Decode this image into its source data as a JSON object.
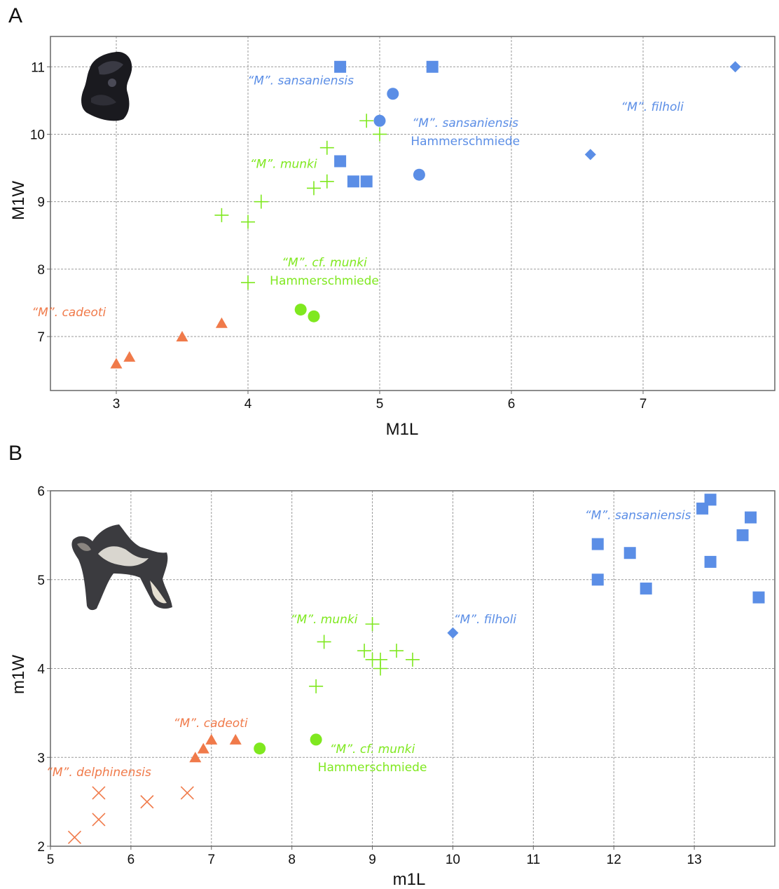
{
  "colors": {
    "blue": "#5b8ee6",
    "green": "#7fe81f",
    "orange": "#f07a4a",
    "grid": "#9a9a9a",
    "frame": "#666666"
  },
  "chart_data": [
    {
      "panel": "A",
      "type": "scatter",
      "xlabel": "M1L",
      "ylabel": "M1W",
      "xlim": [
        2.5,
        8.0
      ],
      "ylim": [
        6.2,
        11.45
      ],
      "xticks": [
        3,
        4,
        5,
        6,
        7
      ],
      "yticks": [
        7,
        8,
        9,
        10,
        11
      ],
      "grid": true,
      "series": [
        {
          "color": "blue",
          "marker": "square",
          "points": [
            [
              4.7,
              11.0
            ],
            [
              5.4,
              11.0
            ],
            [
              4.7,
              9.6
            ],
            [
              4.8,
              9.3
            ],
            [
              4.9,
              9.3
            ]
          ]
        },
        {
          "color": "blue",
          "marker": "circle",
          "points": [
            [
              5.1,
              10.6
            ],
            [
              5.0,
              10.2
            ],
            [
              5.3,
              9.4
            ]
          ]
        },
        {
          "color": "blue",
          "marker": "diamond",
          "points": [
            [
              7.7,
              11.0
            ],
            [
              6.6,
              9.7
            ]
          ]
        },
        {
          "color": "green",
          "marker": "plus",
          "points": [
            [
              4.9,
              10.2
            ],
            [
              5.0,
              10.0
            ],
            [
              4.6,
              9.8
            ],
            [
              4.6,
              9.3
            ],
            [
              4.5,
              9.2
            ],
            [
              4.1,
              9.0
            ],
            [
              3.8,
              8.8
            ],
            [
              4.0,
              8.7
            ],
            [
              4.0,
              7.8
            ]
          ]
        },
        {
          "color": "green",
          "marker": "circle",
          "points": [
            [
              4.4,
              7.4
            ],
            [
              4.5,
              7.3
            ]
          ]
        },
        {
          "color": "orange",
          "marker": "triangle",
          "points": [
            [
              3.0,
              6.6
            ],
            [
              3.1,
              6.7
            ],
            [
              3.5,
              7.0
            ],
            [
              3.8,
              7.2
            ]
          ]
        }
      ],
      "annotations": [
        {
          "color": "blue",
          "lines": [
            {
              "t": "“M”. sansaniensis",
              "it": true
            }
          ],
          "x": 4.4,
          "y": 10.74
        },
        {
          "color": "blue",
          "lines": [
            {
              "t": "“M”. sansaniensis",
              "it": true
            },
            {
              "t": "Hammerschmiede",
              "it": false
            }
          ],
          "x": 5.65,
          "y": 10.11
        },
        {
          "color": "blue",
          "lines": [
            {
              "t": "“M”. filholi",
              "it": true
            }
          ],
          "x": 7.07,
          "y": 10.35
        },
        {
          "color": "green",
          "lines": [
            {
              "t": "“M”. munki",
              "it": true
            }
          ],
          "x": 4.27,
          "y": 9.5
        },
        {
          "color": "green",
          "lines": [
            {
              "t": "“M”. cf. munki",
              "it": true
            },
            {
              "t": "Hammerschmiede",
              "it": false
            }
          ],
          "x": 4.58,
          "y": 8.04
        },
        {
          "color": "orange",
          "lines": [
            {
              "t": "“M”. cadeoti",
              "it": true
            }
          ],
          "x": 2.64,
          "y": 7.3
        }
      ]
    },
    {
      "panel": "B",
      "type": "scatter",
      "xlabel": "m1L",
      "ylabel": "m1W",
      "xlim": [
        5,
        14.0
      ],
      "ylim": [
        2,
        6
      ],
      "xticks": [
        5,
        6,
        7,
        8,
        9,
        10,
        11,
        12,
        13
      ],
      "yticks": [
        2,
        3,
        4,
        5,
        6
      ],
      "grid": true,
      "series": [
        {
          "color": "blue",
          "marker": "square",
          "points": [
            [
              13.2,
              5.9
            ],
            [
              13.1,
              5.8
            ],
            [
              13.7,
              5.7
            ],
            [
              13.6,
              5.5
            ],
            [
              11.8,
              5.4
            ],
            [
              12.2,
              5.3
            ],
            [
              13.2,
              5.2
            ],
            [
              11.8,
              5.0
            ],
            [
              12.4,
              4.9
            ],
            [
              13.8,
              4.8
            ]
          ]
        },
        {
          "color": "blue",
          "marker": "diamond",
          "points": [
            [
              10.0,
              4.4
            ]
          ]
        },
        {
          "color": "green",
          "marker": "plus",
          "points": [
            [
              9.0,
              4.5
            ],
            [
              8.4,
              4.3
            ],
            [
              8.9,
              4.2
            ],
            [
              9.3,
              4.2
            ],
            [
              9.0,
              4.1
            ],
            [
              9.1,
              4.1
            ],
            [
              9.5,
              4.1
            ],
            [
              9.1,
              4.0
            ],
            [
              8.3,
              3.8
            ]
          ]
        },
        {
          "color": "green",
          "marker": "circle",
          "points": [
            [
              8.3,
              3.2
            ],
            [
              7.6,
              3.1
            ]
          ]
        },
        {
          "color": "orange",
          "marker": "triangle",
          "points": [
            [
              7.0,
              3.2
            ],
            [
              7.3,
              3.2
            ],
            [
              6.9,
              3.1
            ],
            [
              6.8,
              3.0
            ]
          ]
        },
        {
          "color": "orange",
          "marker": "x",
          "points": [
            [
              5.6,
              2.6
            ],
            [
              6.7,
              2.6
            ],
            [
              6.2,
              2.5
            ],
            [
              5.6,
              2.3
            ],
            [
              5.3,
              2.1
            ]
          ]
        }
      ],
      "annotations": [
        {
          "color": "blue",
          "lines": [
            {
              "t": "“M”. sansaniensis",
              "it": true
            }
          ],
          "x": 12.3,
          "y": 5.68
        },
        {
          "color": "blue",
          "lines": [
            {
              "t": "“M”. filholi",
              "it": true
            }
          ],
          "x": 10.4,
          "y": 4.51
        },
        {
          "color": "green",
          "lines": [
            {
              "t": "“M”. munki",
              "it": true
            }
          ],
          "x": 8.4,
          "y": 4.51
        },
        {
          "color": "green",
          "lines": [
            {
              "t": "“M”. cf. munki",
              "it": true
            },
            {
              "t": "Hammerschmiede",
              "it": false
            }
          ],
          "x": 9.0,
          "y": 3.05
        },
        {
          "color": "orange",
          "lines": [
            {
              "t": "“M”. cadeoti",
              "it": true
            }
          ],
          "x": 6.99,
          "y": 3.34
        },
        {
          "color": "orange",
          "lines": [
            {
              "t": "“M”. delphinensis",
              "it": true
            }
          ],
          "x": 5.6,
          "y": 2.79
        }
      ]
    }
  ],
  "tooth_images": [
    {
      "panel": "A",
      "icon": "molar-tooth-photo-icon"
    },
    {
      "panel": "B",
      "icon": "lower-molar-tooth-photo-icon"
    }
  ]
}
